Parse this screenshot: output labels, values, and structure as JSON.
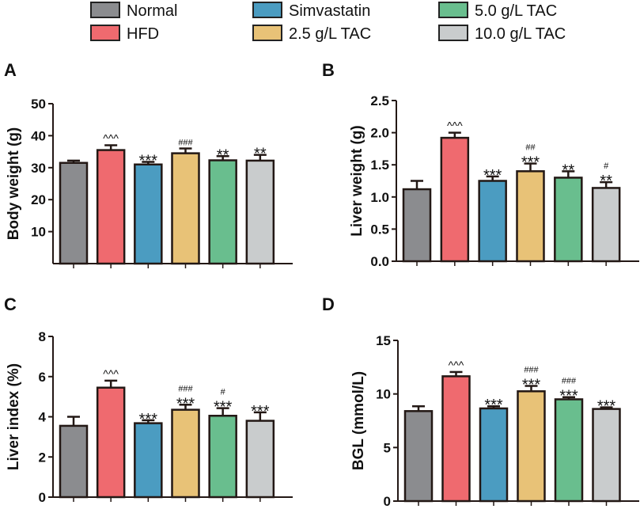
{
  "legend": [
    {
      "label": "Normal",
      "color": "#8b8c8f"
    },
    {
      "label": "HFD",
      "color": "#ef6a6f"
    },
    {
      "label": "Simvastatin",
      "color": "#4b9cc1"
    },
    {
      "label": "2.5 g/L TAC",
      "color": "#e8c277"
    },
    {
      "label": "5.0 g/L TAC",
      "color": "#69be8e"
    },
    {
      "label": "10.0 g/L TAC",
      "color": "#c9cccd"
    }
  ],
  "chart_data": [
    {
      "type": "bar",
      "panel": "A",
      "ylabel": "Body weight (g)",
      "ylim": [
        0,
        50
      ],
      "ticks": [
        "10",
        "20",
        "30",
        "40",
        "50"
      ],
      "tick_values": [
        10,
        20,
        30,
        40,
        50
      ],
      "categories": [
        "Normal",
        "HFD",
        "Simvastatin",
        "2.5 g/L TAC",
        "5.0 g/L TAC",
        "10.0 g/L TAC"
      ],
      "values": [
        31.5,
        35.5,
        31.0,
        34.5,
        32.3,
        32.2
      ],
      "errors": [
        0.7,
        1.5,
        0.8,
        1.5,
        1.3,
        1.8
      ],
      "annotations": [
        [],
        [
          "^^^"
        ],
        [
          "***"
        ],
        [
          "###"
        ],
        [
          "**"
        ],
        [
          "**"
        ]
      ]
    },
    {
      "type": "bar",
      "panel": "B",
      "ylabel": "Liver weight (g)",
      "ylim": [
        0,
        2.5
      ],
      "ticks": [
        "0.0",
        "0.5",
        "1.0",
        "1.5",
        "2.0",
        "2.5"
      ],
      "tick_values": [
        0,
        0.5,
        1.0,
        1.5,
        2.0,
        2.5
      ],
      "categories": [
        "Normal",
        "HFD",
        "Simvastatin",
        "2.5 g/L TAC",
        "5.0 g/L TAC",
        "10.0 g/L TAC"
      ],
      "values": [
        1.12,
        1.92,
        1.25,
        1.4,
        1.3,
        1.14
      ],
      "errors": [
        0.13,
        0.08,
        0.07,
        0.12,
        0.1,
        0.09
      ],
      "annotations": [
        [],
        [
          "^^^"
        ],
        [
          "***"
        ],
        [
          "##",
          "***"
        ],
        [
          "**"
        ],
        [
          "#",
          "**"
        ]
      ]
    },
    {
      "type": "bar",
      "panel": "C",
      "ylabel": "Liver index (%)",
      "ylim": [
        0,
        8
      ],
      "ticks": [
        "0",
        "2",
        "4",
        "6",
        "8"
      ],
      "tick_values": [
        0,
        2,
        4,
        6,
        8
      ],
      "categories": [
        "Normal",
        "HFD",
        "Simvastatin",
        "2.5 g/L TAC",
        "5.0 g/L TAC",
        "10.0 g/L TAC"
      ],
      "values": [
        3.55,
        5.45,
        3.68,
        4.35,
        4.05,
        3.8
      ],
      "errors": [
        0.45,
        0.35,
        0.15,
        0.25,
        0.38,
        0.42
      ],
      "annotations": [
        [],
        [
          "^^^"
        ],
        [
          "***"
        ],
        [
          "###",
          "***"
        ],
        [
          "#",
          "***"
        ],
        [
          "***"
        ]
      ]
    },
    {
      "type": "bar",
      "panel": "D",
      "ylabel": "BGL (mmol/L)",
      "ylim": [
        0,
        15
      ],
      "ticks": [
        "0",
        "5",
        "10",
        "15"
      ],
      "tick_values": [
        0,
        5,
        10,
        15
      ],
      "categories": [
        "Normal",
        "HFD",
        "Simvastatin",
        "2.5 g/L TAC",
        "5.0 g/L TAC",
        "10.0 g/L TAC"
      ],
      "values": [
        8.4,
        11.65,
        8.65,
        10.25,
        9.5,
        8.6
      ],
      "errors": [
        0.45,
        0.4,
        0.2,
        0.5,
        0.2,
        0.15
      ],
      "annotations": [
        [],
        [
          "^^^"
        ],
        [
          "***"
        ],
        [
          "###",
          "***"
        ],
        [
          "###",
          "***"
        ],
        [
          "***"
        ]
      ]
    }
  ]
}
